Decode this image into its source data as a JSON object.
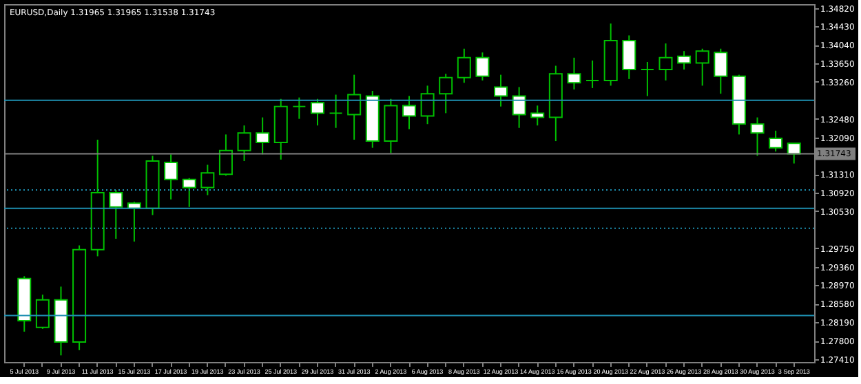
{
  "chart_data": {
    "type": "candlestick",
    "title": "EURUSD,Daily 1.31965 1.31965 1.31538 1.31743",
    "categories": [
      "5 Jul 2013",
      null,
      "9 Jul 2013",
      null,
      "11 Jul 2013",
      null,
      "15 Jul 2013",
      null,
      "17 Jul 2013",
      null,
      "19 Jul 2013",
      null,
      "23 Jul 2013",
      null,
      "25 Jul 2013",
      null,
      "29 Jul 2013",
      null,
      "31 Jul 2013",
      null,
      "2 Aug 2013",
      null,
      "6 Aug 2013",
      null,
      "8 Aug 2013",
      null,
      "12 Aug 2013",
      null,
      "14 Aug 2013",
      null,
      "16 Aug 2013",
      null,
      "20 Aug 2013",
      null,
      "22 Aug 2013",
      null,
      "26 Aug 2013",
      null,
      "28 Aug 2013",
      null,
      "30 Aug 2013",
      null,
      "3 Sep 2013"
    ],
    "ohlc": [
      [
        1.2911,
        1.2916,
        1.2799,
        1.2822
      ],
      [
        1.2808,
        1.2877,
        1.2805,
        1.2866
      ],
      [
        1.2866,
        1.2894,
        1.2749,
        1.2777
      ],
      [
        1.2777,
        1.2981,
        1.276,
        1.2972
      ],
      [
        1.2972,
        1.3204,
        1.2958,
        1.3092
      ],
      [
        1.3092,
        1.3098,
        1.2995,
        1.3062
      ],
      [
        1.307,
        1.3073,
        1.2989,
        1.3059
      ],
      [
        1.3059,
        1.317,
        1.3045,
        1.3159
      ],
      [
        1.3156,
        1.3173,
        1.3078,
        1.312
      ],
      [
        1.312,
        1.3123,
        1.3062,
        1.3103
      ],
      [
        1.3103,
        1.3151,
        1.3087,
        1.3134
      ],
      [
        1.3131,
        1.3215,
        1.3128,
        1.3181
      ],
      [
        1.3181,
        1.3234,
        1.3159,
        1.3218
      ],
      [
        1.3218,
        1.3251,
        1.3173,
        1.3198
      ],
      [
        1.3198,
        1.329,
        1.3162,
        1.3274
      ],
      [
        1.3274,
        1.3293,
        1.3248,
        1.3274
      ],
      [
        1.3282,
        1.329,
        1.3234,
        1.326
      ],
      [
        1.326,
        1.3299,
        1.3229,
        1.326
      ],
      [
        1.3257,
        1.3341,
        1.3204,
        1.3299
      ],
      [
        1.3296,
        1.3307,
        1.3187,
        1.3201
      ],
      [
        1.3201,
        1.329,
        1.3176,
        1.3276
      ],
      [
        1.3276,
        1.3296,
        1.3226,
        1.3254
      ],
      [
        1.3254,
        1.3318,
        1.3237,
        1.3301
      ],
      [
        1.3301,
        1.3343,
        1.326,
        1.3335
      ],
      [
        1.3335,
        1.3396,
        1.3324,
        1.3377
      ],
      [
        1.3377,
        1.3388,
        1.3329,
        1.3338
      ],
      [
        1.3315,
        1.3341,
        1.3274,
        1.3296
      ],
      [
        1.3296,
        1.3315,
        1.3229,
        1.3257
      ],
      [
        1.326,
        1.3276,
        1.3234,
        1.3251
      ],
      [
        1.3251,
        1.336,
        1.3201,
        1.3343
      ],
      [
        1.3343,
        1.3377,
        1.331,
        1.3324
      ],
      [
        1.3329,
        1.3371,
        1.3313,
        1.3329
      ],
      [
        1.3329,
        1.3449,
        1.3318,
        1.3413
      ],
      [
        1.3413,
        1.3424,
        1.3332,
        1.3352
      ],
      [
        1.3352,
        1.3368,
        1.3296,
        1.3352
      ],
      [
        1.3352,
        1.3407,
        1.3329,
        1.3377
      ],
      [
        1.338,
        1.3391,
        1.3352,
        1.3366
      ],
      [
        1.3366,
        1.3396,
        1.3318,
        1.3391
      ],
      [
        1.3388,
        1.3396,
        1.3301,
        1.3338
      ],
      [
        1.3338,
        1.3341,
        1.3215,
        1.3237
      ],
      [
        1.3237,
        1.3251,
        1.317,
        1.3218
      ],
      [
        1.3207,
        1.3223,
        1.3179,
        1.3187
      ],
      [
        1.31965,
        1.31965,
        1.31538,
        1.31743
      ]
    ],
    "ylim": [
      1.2735,
      1.349
    ],
    "yticks": [
      {
        "value": 1.2741,
        "label": "1.27410"
      },
      {
        "value": 1.278,
        "label": "1.27800"
      },
      {
        "value": 1.2819,
        "label": "1.28190"
      },
      {
        "value": 1.2858,
        "label": "1.28580"
      },
      {
        "value": 1.2897,
        "label": "1.28970"
      },
      {
        "value": 1.2936,
        "label": "1.29360"
      },
      {
        "value": 1.2975,
        "label": "1.29750"
      },
      {
        "value": 1.3053,
        "label": "1.30530"
      },
      {
        "value": 1.3092,
        "label": "1.30920"
      },
      {
        "value": 1.3131,
        "label": "1.31310"
      },
      {
        "value": 1.3209,
        "label": "1.32090"
      },
      {
        "value": 1.3248,
        "label": "1.32480"
      },
      {
        "value": 1.3326,
        "label": "1.33260"
      },
      {
        "value": 1.3365,
        "label": "1.33650"
      },
      {
        "value": 1.3404,
        "label": "1.34040"
      },
      {
        "value": 1.3443,
        "label": "1.34430"
      },
      {
        "value": 1.3482,
        "label": "1.34820"
      }
    ],
    "ref_lines": [
      {
        "axis": "y",
        "value": 1.3287,
        "color": "#1e8fb0",
        "line_style": "solid"
      },
      {
        "axis": "y",
        "value": 1.31743,
        "label": "1.31743",
        "color": "#808080",
        "line_style": "solid"
      },
      {
        "axis": "y",
        "value": 1.3098,
        "color": "#1e8fb0",
        "line_style": "dotted"
      },
      {
        "axis": "y",
        "value": 1.3059,
        "color": "#1e8fb0",
        "line_style": "solid"
      },
      {
        "axis": "y",
        "value": 1.3017,
        "color": "#1e8fb0",
        "line_style": "dotted"
      },
      {
        "axis": "y",
        "value": 1.2833,
        "color": "#1e8fb0",
        "line_style": "solid"
      }
    ],
    "grid": false
  }
}
